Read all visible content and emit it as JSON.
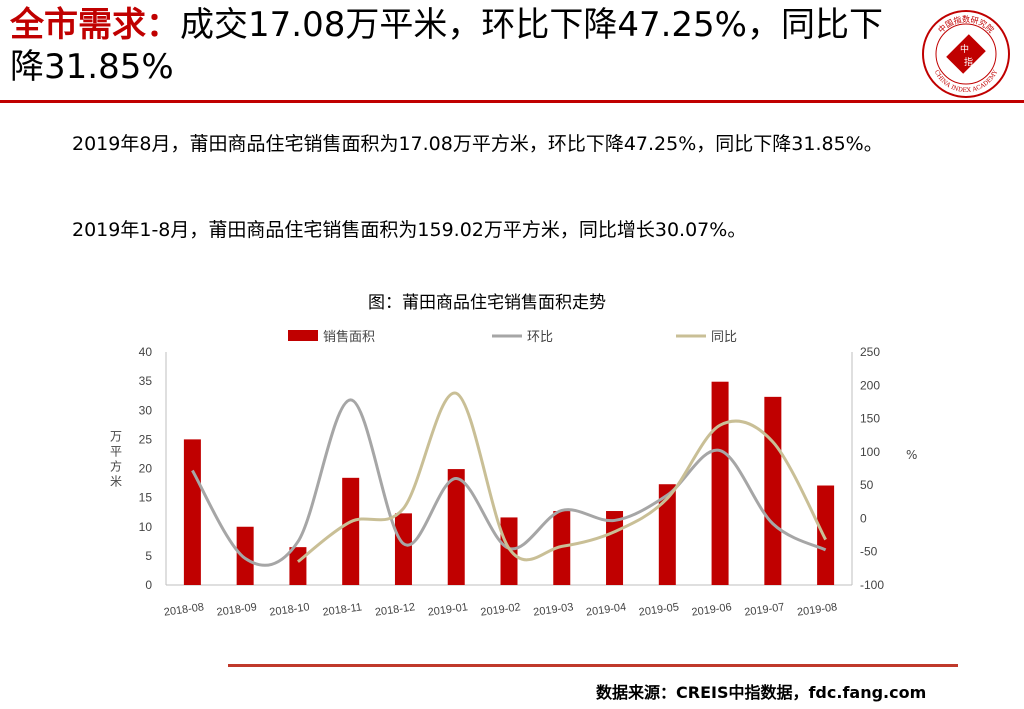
{
  "headline": {
    "keyword": "全市需求：",
    "rest": "成交17.08万平米，环比下降47.25%，同比下降31.85%"
  },
  "logo": {
    "text_top": "中国指数研究院",
    "text_bottom": "CHINA INDEX ACADEMY",
    "text_center_1": "中",
    "text_center_2": "指",
    "color": "#c00000"
  },
  "paragraphs": [
    "2019年8月，莆田商品住宅销售面积为17.08万平方米，环比下降47.25%，同比下降31.85%。",
    "2019年1-8月，莆田商品住宅销售面积为159.02万平方米，同比增长30.07%。"
  ],
  "chart_title": "图：莆田商品住宅销售面积走势",
  "chart_data": {
    "type": "bar",
    "title": "图：莆田商品住宅销售面积走势",
    "categories": [
      "2018-08",
      "2018-09",
      "2018-10",
      "2018-11",
      "2018-12",
      "2019-01",
      "2019-02",
      "2019-03",
      "2019-04",
      "2019-05",
      "2019-06",
      "2019-07",
      "2019-08"
    ],
    "ylabel": "万平方米",
    "y2label": "%",
    "ylim": [
      0,
      40
    ],
    "y2lim": [
      -100,
      250
    ],
    "yticks": [
      0,
      5,
      10,
      15,
      20,
      25,
      30,
      35,
      40
    ],
    "y2ticks": [
      -100,
      -50,
      0,
      50,
      100,
      150,
      200,
      250
    ],
    "legend_position": "top",
    "series": [
      {
        "name": "销售面积",
        "type": "bar",
        "axis": "left",
        "color": "#c00000",
        "values": [
          25.0,
          10.0,
          6.5,
          18.4,
          12.3,
          19.9,
          11.6,
          12.7,
          12.7,
          17.3,
          34.9,
          32.3,
          17.08
        ]
      },
      {
        "name": "环比",
        "type": "line",
        "axis": "right",
        "color": "#a6a6a6",
        "values": [
          72,
          -60,
          -35,
          178,
          -38,
          60,
          -45,
          12,
          -3,
          35,
          102,
          -8,
          -47.25
        ]
      },
      {
        "name": "同比",
        "type": "line",
        "axis": "right",
        "color": "#c9bf96",
        "values": [
          null,
          null,
          -65,
          -5,
          15,
          188,
          -45,
          -42,
          -20,
          30,
          140,
          115,
          -31.85
        ]
      }
    ]
  },
  "source": "数据来源：CREIS中指数据，fdc.fang.com"
}
